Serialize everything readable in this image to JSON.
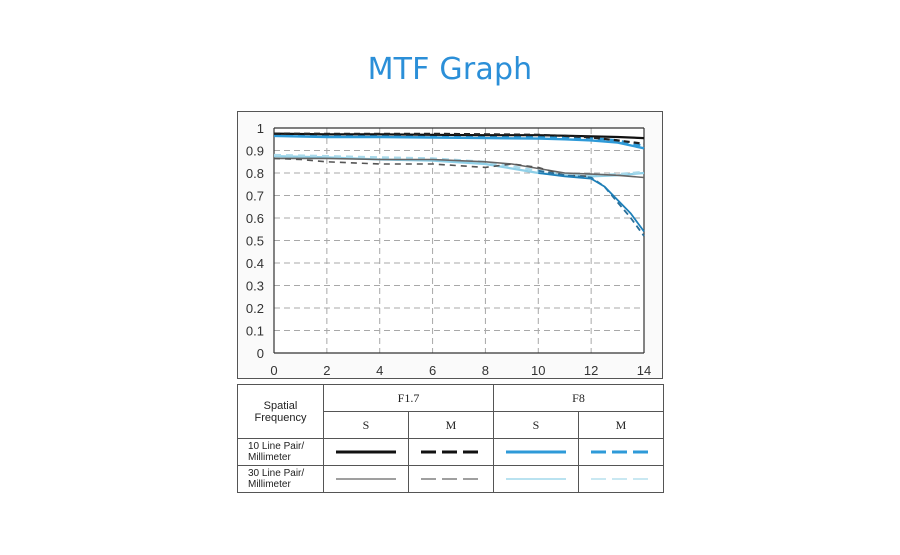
{
  "title": "MTF Graph",
  "colors": {
    "title": "#2b8fd8",
    "f17_10": "#111111",
    "f17_30": "#666666",
    "f8_10": "#2e9ad8",
    "f8_30": "#8fd0e8",
    "f8_30_m": "#a9d9ea",
    "grid": "#a8a8a8"
  },
  "chart_data": {
    "type": "line",
    "xlim": [
      0,
      14
    ],
    "ylim": [
      0,
      1
    ],
    "x_ticks": [
      "0",
      "2",
      "4",
      "6",
      "8",
      "10",
      "12",
      "14"
    ],
    "y_ticks": [
      "0",
      "0.1",
      "0.2",
      "0.3",
      "0.4",
      "0.5",
      "0.6",
      "0.7",
      "0.8",
      "0.9",
      "1"
    ],
    "grid": true,
    "series": [
      {
        "key": "f8_30_s",
        "color": "#8fd0e8",
        "dash": "",
        "width": 2.2,
        "x": [
          0,
          2,
          4,
          6,
          8,
          9,
          10,
          11,
          12,
          13,
          14
        ],
        "y": [
          0.875,
          0.87,
          0.86,
          0.855,
          0.84,
          0.82,
          0.8,
          0.79,
          0.785,
          0.79,
          0.8
        ]
      },
      {
        "key": "f8_30_m",
        "color": "#a9d9ea",
        "dash": "7,5",
        "width": 2.2,
        "x": [
          0,
          2,
          4,
          6,
          8,
          9,
          10,
          11,
          12,
          13,
          14
        ],
        "y": [
          0.88,
          0.875,
          0.87,
          0.865,
          0.85,
          0.83,
          0.81,
          0.795,
          0.79,
          0.795,
          0.805
        ]
      },
      {
        "key": "f17_30_s",
        "color": "#666666",
        "dash": "",
        "width": 1.6,
        "x": [
          0,
          2,
          4,
          6,
          8,
          9,
          10,
          11,
          12,
          13,
          14
        ],
        "y": [
          0.865,
          0.865,
          0.86,
          0.86,
          0.85,
          0.84,
          0.82,
          0.8,
          0.795,
          0.79,
          0.78
        ]
      },
      {
        "key": "f17_30_m",
        "color": "#555555",
        "dash": "6,5",
        "width": 1.6,
        "x": [
          0,
          1,
          2,
          4,
          6,
          8,
          9,
          10,
          11,
          12
        ],
        "y": [
          0.865,
          0.86,
          0.85,
          0.84,
          0.84,
          0.825,
          0.84,
          0.825,
          0.79,
          0.785
        ]
      },
      {
        "key": "f8_30_m_drop",
        "color": "#2a6f9a",
        "dash": "6,4",
        "width": 1.8,
        "x": [
          10,
          11,
          12,
          12.5,
          13,
          13.5,
          14
        ],
        "y": [
          0.81,
          0.79,
          0.78,
          0.74,
          0.67,
          0.6,
          0.52
        ]
      },
      {
        "key": "f8_30_s_drop",
        "color": "#1d7fb8",
        "dash": "",
        "width": 1.8,
        "x": [
          10,
          11,
          12,
          12.5,
          13,
          13.5,
          14
        ],
        "y": [
          0.8,
          0.785,
          0.775,
          0.74,
          0.68,
          0.62,
          0.54
        ]
      },
      {
        "key": "f8_10_s",
        "color": "#2e9ad8",
        "dash": "",
        "width": 2.4,
        "x": [
          0,
          2,
          4,
          6,
          8,
          10,
          11,
          12,
          13,
          14
        ],
        "y": [
          0.965,
          0.96,
          0.96,
          0.958,
          0.955,
          0.953,
          0.95,
          0.945,
          0.935,
          0.91
        ]
      },
      {
        "key": "f8_10_m",
        "color": "#2e9ad8",
        "dash": "7,5",
        "width": 2.4,
        "x": [
          0,
          2,
          4,
          6,
          8,
          10,
          11,
          12,
          13,
          14
        ],
        "y": [
          0.97,
          0.968,
          0.966,
          0.965,
          0.962,
          0.96,
          0.958,
          0.955,
          0.945,
          0.92
        ]
      },
      {
        "key": "f17_10_s",
        "color": "#111111",
        "dash": "",
        "width": 2.2,
        "x": [
          0,
          2,
          4,
          6,
          8,
          10,
          11,
          12,
          13,
          14
        ],
        "y": [
          0.975,
          0.972,
          0.972,
          0.97,
          0.968,
          0.968,
          0.966,
          0.963,
          0.96,
          0.955
        ]
      },
      {
        "key": "f17_10_m",
        "color": "#222222",
        "dash": "6,4",
        "width": 2.2,
        "x": [
          0,
          2,
          4,
          6,
          8,
          10,
          11,
          12,
          13,
          14
        ],
        "y": [
          0.975,
          0.974,
          0.974,
          0.974,
          0.972,
          0.97,
          0.965,
          0.958,
          0.945,
          0.93
        ]
      }
    ]
  },
  "legend": {
    "spatial_line1": "Spatial",
    "spatial_line2": "Frequency",
    "aperture_1": "F1.7",
    "aperture_2": "F8",
    "s_label": "S",
    "m_label": "M",
    "row1_line1": "10 Line Pair/",
    "row1_line2": "Millimeter",
    "row2_line1": "30 Line Pair/",
    "row2_line2": "Millimeter"
  }
}
